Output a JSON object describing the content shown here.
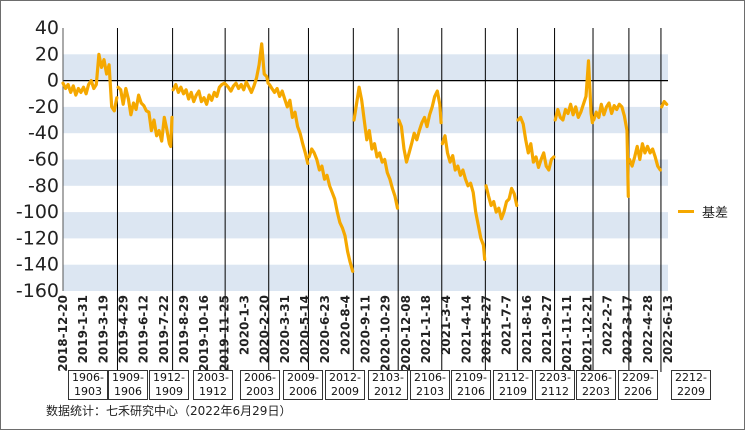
{
  "chart_data": {
    "type": "line",
    "title": "",
    "xlabel": "",
    "ylabel": "",
    "ylim": [
      -160,
      40
    ],
    "yticks": [
      40,
      20,
      0,
      -20,
      -40,
      -60,
      -80,
      -100,
      -120,
      -140,
      -160
    ],
    "grid": "horizontal bands",
    "legend_position": "right",
    "x_tick_labels": [
      "2018-12-20",
      "2019-1-31",
      "2019-3-19",
      "2019-4-29",
      "2019-6-12",
      "2019-7-22",
      "2019-8-29",
      "2019-10-16",
      "2019-11-25",
      "2020-1-3",
      "2020-2-20",
      "2020-3-31",
      "2020-5-14",
      "2020-6-23",
      "2020-8-4",
      "2020-9-11",
      "2020-10-29",
      "2020-12-08",
      "2021-1-18",
      "2021-3-4",
      "2021-4-14",
      "2021-5-27",
      "2021-7-7",
      "2021-8-16",
      "2021-9-27",
      "2021-11-11",
      "2021-12-21",
      "2022-2-7",
      "2022-3-17",
      "2022-4-28",
      "2022-6-13"
    ],
    "contract_boxes": [
      "1906-1903",
      "1909-1906",
      "1912-1909",
      "2003-1912",
      "2006-2003",
      "2009-2006",
      "2012-2009",
      "2103-2012",
      "2106-2103",
      "2109-2106",
      "2112-2109",
      "2203-2112",
      "2206-2203",
      "2209-2206",
      "2212-2209"
    ],
    "series": [
      {
        "name": "基差",
        "color": "#F5A800",
        "segments": [
          [
            [
              0,
              -2
            ],
            [
              2,
              -6
            ],
            [
              4,
              -3
            ],
            [
              6,
              -9
            ],
            [
              8,
              -4
            ],
            [
              10,
              -11
            ],
            [
              12,
              -6
            ],
            [
              14,
              -9
            ],
            [
              16,
              -5
            ],
            [
              18,
              -10
            ],
            [
              20,
              -3
            ],
            [
              22,
              0
            ],
            [
              24,
              -6
            ],
            [
              26,
              -3
            ],
            [
              28,
              20
            ],
            [
              30,
              10
            ],
            [
              32,
              16
            ],
            [
              34,
              5
            ],
            [
              36,
              12
            ],
            [
              38,
              -20
            ],
            [
              40,
              -23
            ],
            [
              42,
              -13
            ]
          ],
          [
            [
              43,
              -5
            ],
            [
              45,
              -7
            ],
            [
              47,
              -18
            ],
            [
              49,
              -6
            ],
            [
              51,
              -14
            ],
            [
              53,
              -26
            ],
            [
              55,
              -17
            ],
            [
              57,
              -22
            ],
            [
              59,
              -11
            ],
            [
              61,
              -17
            ],
            [
              63,
              -19
            ],
            [
              65,
              -23
            ],
            [
              67,
              -24
            ],
            [
              69,
              -38
            ],
            [
              71,
              -30
            ],
            [
              73,
              -42
            ],
            [
              75,
              -38
            ],
            [
              77,
              -46
            ],
            [
              79,
              -28
            ],
            [
              81,
              -37
            ],
            [
              83,
              -48
            ],
            [
              84,
              -50
            ],
            [
              85,
              -28
            ]
          ],
          [
            [
              86,
              -7
            ],
            [
              88,
              -3
            ],
            [
              90,
              -9
            ],
            [
              92,
              -5
            ],
            [
              94,
              -10
            ],
            [
              96,
              -7
            ],
            [
              98,
              -14
            ],
            [
              100,
              -9
            ],
            [
              102,
              -16
            ],
            [
              104,
              -11
            ],
            [
              106,
              -8
            ],
            [
              108,
              -16
            ],
            [
              110,
              -13
            ],
            [
              112,
              -18
            ],
            [
              114,
              -11
            ],
            [
              116,
              -15
            ],
            [
              118,
              -9
            ],
            [
              120,
              -12
            ],
            [
              122,
              -5
            ],
            [
              124,
              -3
            ],
            [
              126,
              -2
            ]
          ],
          [
            [
              127,
              -3
            ],
            [
              129,
              -5
            ],
            [
              131,
              -8
            ],
            [
              133,
              -4
            ],
            [
              135,
              -2
            ],
            [
              137,
              -6
            ],
            [
              139,
              -3
            ],
            [
              141,
              -7
            ],
            [
              143,
              -1
            ],
            [
              145,
              -5
            ],
            [
              147,
              -9
            ],
            [
              149,
              -4
            ],
            [
              151,
              2
            ],
            [
              153,
              12
            ],
            [
              155,
              28
            ],
            [
              157,
              5
            ],
            [
              159,
              3
            ],
            [
              160,
              -2
            ]
          ],
          [
            [
              161,
              -3
            ],
            [
              163,
              -6
            ],
            [
              165,
              -9
            ],
            [
              167,
              -6
            ],
            [
              169,
              -12
            ],
            [
              171,
              -8
            ],
            [
              173,
              -14
            ],
            [
              175,
              -20
            ],
            [
              177,
              -15
            ],
            [
              179,
              -28
            ],
            [
              181,
              -24
            ],
            [
              183,
              -35
            ],
            [
              185,
              -40
            ],
            [
              187,
              -48
            ],
            [
              189,
              -55
            ],
            [
              191,
              -63
            ]
          ],
          [
            [
              192,
              -58
            ],
            [
              194,
              -52
            ],
            [
              196,
              -55
            ],
            [
              198,
              -60
            ],
            [
              200,
              -68
            ],
            [
              202,
              -65
            ],
            [
              204,
              -75
            ],
            [
              206,
              -72
            ],
            [
              208,
              -80
            ],
            [
              210,
              -85
            ],
            [
              212,
              -90
            ],
            [
              214,
              -100
            ],
            [
              216,
              -108
            ],
            [
              218,
              -112
            ],
            [
              220,
              -118
            ],
            [
              222,
              -130
            ],
            [
              224,
              -138
            ],
            [
              226,
              -145
            ]
          ],
          [
            [
              227,
              -30
            ],
            [
              229,
              -18
            ],
            [
              231,
              -5
            ],
            [
              233,
              -15
            ],
            [
              235,
              -30
            ],
            [
              237,
              -45
            ],
            [
              239,
              -38
            ],
            [
              241,
              -52
            ],
            [
              243,
              -48
            ],
            [
              245,
              -58
            ],
            [
              247,
              -55
            ],
            [
              249,
              -62
            ],
            [
              251,
              -60
            ],
            [
              253,
              -70
            ],
            [
              255,
              -75
            ],
            [
              257,
              -82
            ],
            [
              259,
              -88
            ],
            [
              261,
              -97
            ]
          ],
          [
            [
              262,
              -30
            ],
            [
              264,
              -35
            ],
            [
              266,
              -52
            ],
            [
              268,
              -62
            ],
            [
              270,
              -55
            ],
            [
              272,
              -48
            ],
            [
              274,
              -40
            ],
            [
              276,
              -45
            ],
            [
              278,
              -38
            ],
            [
              280,
              -32
            ],
            [
              282,
              -28
            ],
            [
              284,
              -35
            ],
            [
              286,
              -26
            ],
            [
              288,
              -20
            ],
            [
              290,
              -12
            ],
            [
              292,
              -8
            ],
            [
              294,
              -18
            ],
            [
              295,
              -32
            ]
          ],
          [
            [
              296,
              -48
            ],
            [
              298,
              -42
            ],
            [
              300,
              -55
            ],
            [
              302,
              -62
            ],
            [
              304,
              -57
            ],
            [
              306,
              -68
            ],
            [
              308,
              -65
            ],
            [
              310,
              -72
            ],
            [
              312,
              -68
            ],
            [
              314,
              -75
            ],
            [
              316,
              -80
            ],
            [
              318,
              -78
            ],
            [
              320,
              -85
            ],
            [
              322,
              -100
            ],
            [
              324,
              -110
            ],
            [
              326,
              -120
            ],
            [
              328,
              -125
            ],
            [
              329,
              -136
            ]
          ],
          [
            [
              330,
              -80
            ],
            [
              332,
              -88
            ],
            [
              334,
              -95
            ],
            [
              336,
              -92
            ],
            [
              338,
              -100
            ],
            [
              340,
              -97
            ],
            [
              342,
              -105
            ],
            [
              344,
              -100
            ],
            [
              346,
              -92
            ],
            [
              348,
              -90
            ],
            [
              350,
              -82
            ],
            [
              352,
              -86
            ],
            [
              354,
              -95
            ]
          ],
          [
            [
              355,
              -30
            ],
            [
              357,
              -28
            ],
            [
              359,
              -33
            ],
            [
              361,
              -45
            ],
            [
              363,
              -55
            ],
            [
              365,
              -48
            ],
            [
              367,
              -62
            ],
            [
              369,
              -58
            ],
            [
              371,
              -66
            ],
            [
              373,
              -60
            ],
            [
              375,
              -55
            ],
            [
              377,
              -65
            ],
            [
              379,
              -68
            ],
            [
              381,
              -60
            ],
            [
              383,
              -58
            ]
          ],
          [
            [
              384,
              -30
            ],
            [
              386,
              -22
            ],
            [
              388,
              -28
            ],
            [
              390,
              -30
            ],
            [
              392,
              -22
            ],
            [
              394,
              -25
            ],
            [
              396,
              -18
            ],
            [
              398,
              -26
            ],
            [
              400,
              -20
            ],
            [
              402,
              -28
            ],
            [
              404,
              -24
            ],
            [
              406,
              -18
            ],
            [
              408,
              -12
            ],
            [
              410,
              15
            ],
            [
              412,
              -25
            ],
            [
              413,
              -32
            ]
          ],
          [
            [
              414,
              -30
            ],
            [
              416,
              -24
            ],
            [
              418,
              -28
            ],
            [
              420,
              -18
            ],
            [
              422,
              -26
            ],
            [
              424,
              -20
            ],
            [
              426,
              -17
            ],
            [
              428,
              -25
            ],
            [
              430,
              -19
            ],
            [
              432,
              -22
            ],
            [
              434,
              -18
            ],
            [
              436,
              -20
            ],
            [
              438,
              -27
            ],
            [
              440,
              -38
            ],
            [
              441,
              -88
            ]
          ],
          [
            [
              442,
              -60
            ],
            [
              444,
              -65
            ],
            [
              446,
              -58
            ],
            [
              448,
              -50
            ],
            [
              450,
              -60
            ],
            [
              452,
              -48
            ],
            [
              454,
              -55
            ],
            [
              456,
              -50
            ],
            [
              458,
              -55
            ],
            [
              460,
              -52
            ],
            [
              462,
              -58
            ],
            [
              464,
              -65
            ],
            [
              466,
              -68
            ]
          ],
          [
            [
              467,
              -20
            ],
            [
              469,
              -16
            ],
            [
              471,
              -18
            ]
          ]
        ]
      }
    ],
    "x_range": [
      0,
      472
    ]
  },
  "legend": {
    "label": "基差"
  },
  "source_note": "数据统计：七禾研究中心（2022年6月29日）"
}
